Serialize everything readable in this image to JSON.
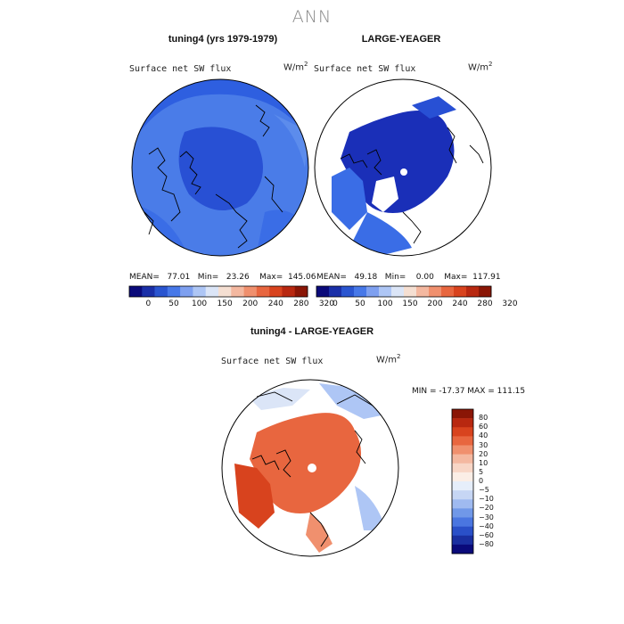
{
  "figure": {
    "main_title": "ANN"
  },
  "chart_data": [
    {
      "type": "heatmap",
      "title": "tuning4 (yrs 1979-1979)",
      "variable": "Surface net SW flux",
      "units": "W/m2",
      "unit_base": "W/m",
      "unit_exp": "2",
      "projection": "north polar stereographic",
      "stats": {
        "mean": "77.01",
        "min": "23.26",
        "max": "145.06"
      },
      "stats_text": "MEAN=   77.01   Min=   23.26    Max=  145.06",
      "colorbar": {
        "levels": [
          0,
          50,
          100,
          150,
          200,
          240,
          280,
          320
        ],
        "tick_labels": [
          "0",
          "50",
          "100",
          "150",
          "200",
          "240",
          "280",
          "320"
        ],
        "colors": [
          "#0a0a7a",
          "#1a2fa8",
          "#2a55d0",
          "#4778e8",
          "#7ea0f0",
          "#aec6f5",
          "#dbe5f7",
          "#f5dfd2",
          "#f4b8a0",
          "#f0906e",
          "#e8663f",
          "#d8431e",
          "#b82810",
          "#8a1606"
        ]
      },
      "field_colors": [
        "#2e5fe0",
        "#3a6de6",
        "#4a7ce8",
        "#2850d4",
        "#5c8cec"
      ]
    },
    {
      "type": "heatmap",
      "title": "LARGE-YEAGER",
      "variable": "Surface net SW flux",
      "units": "W/m2",
      "unit_base": "W/m",
      "unit_exp": "2",
      "projection": "north polar stereographic",
      "stats": {
        "mean": "49.18",
        "min": "0.00",
        "max": "117.91"
      },
      "stats_text": "MEAN=   49.18   Min=    0.00    Max=  117.91",
      "colorbar": {
        "levels": [
          0,
          50,
          100,
          150,
          200,
          240,
          280,
          320
        ],
        "tick_labels": [
          "0",
          "50",
          "100",
          "150",
          "200",
          "240",
          "280",
          "320"
        ],
        "colors": [
          "#0a0a7a",
          "#1a2fa8",
          "#2a55d0",
          "#4778e8",
          "#7ea0f0",
          "#aec6f5",
          "#dbe5f7",
          "#f5dfd2",
          "#f4b8a0",
          "#f0906e",
          "#e8663f",
          "#d8431e",
          "#b82810",
          "#8a1606"
        ]
      },
      "field_colors": [
        "#1a2fb8",
        "#2850d4",
        "#3a6de6",
        "#ffffff"
      ]
    },
    {
      "type": "heatmap",
      "title": "tuning4 - LARGE-YEAGER",
      "variable": "Surface net SW flux",
      "units": "W/m2",
      "unit_base": "W/m",
      "unit_exp": "2",
      "projection": "north polar stereographic",
      "stats": {
        "min": "-17.37",
        "max": "111.15"
      },
      "stats_text": "MIN = -17.37 MAX = 111.15",
      "colorbar": {
        "levels": [
          80,
          60,
          40,
          30,
          20,
          10,
          5,
          0,
          -5,
          -10,
          -20,
          -30,
          -40,
          -60,
          -80
        ],
        "tick_labels": [
          "80",
          "60",
          "40",
          "30",
          "20",
          "10",
          "5",
          "0",
          "−5",
          "−10",
          "−20",
          "−30",
          "−40",
          "−60",
          "−80"
        ],
        "colors": [
          "#8a1606",
          "#b82810",
          "#d8431e",
          "#e8663f",
          "#f0906e",
          "#f4b8a0",
          "#f8d6c6",
          "#fbeee6",
          "#e6eefa",
          "#c6d6f4",
          "#9fbaf0",
          "#7098e8",
          "#4a76e0",
          "#2a50c8",
          "#1a2fa0",
          "#0a0a7a"
        ]
      },
      "field_colors": [
        "#e8663f",
        "#f0906e",
        "#d8431e",
        "#aec6f5",
        "#dbe5f7",
        "#ffffff"
      ]
    }
  ]
}
